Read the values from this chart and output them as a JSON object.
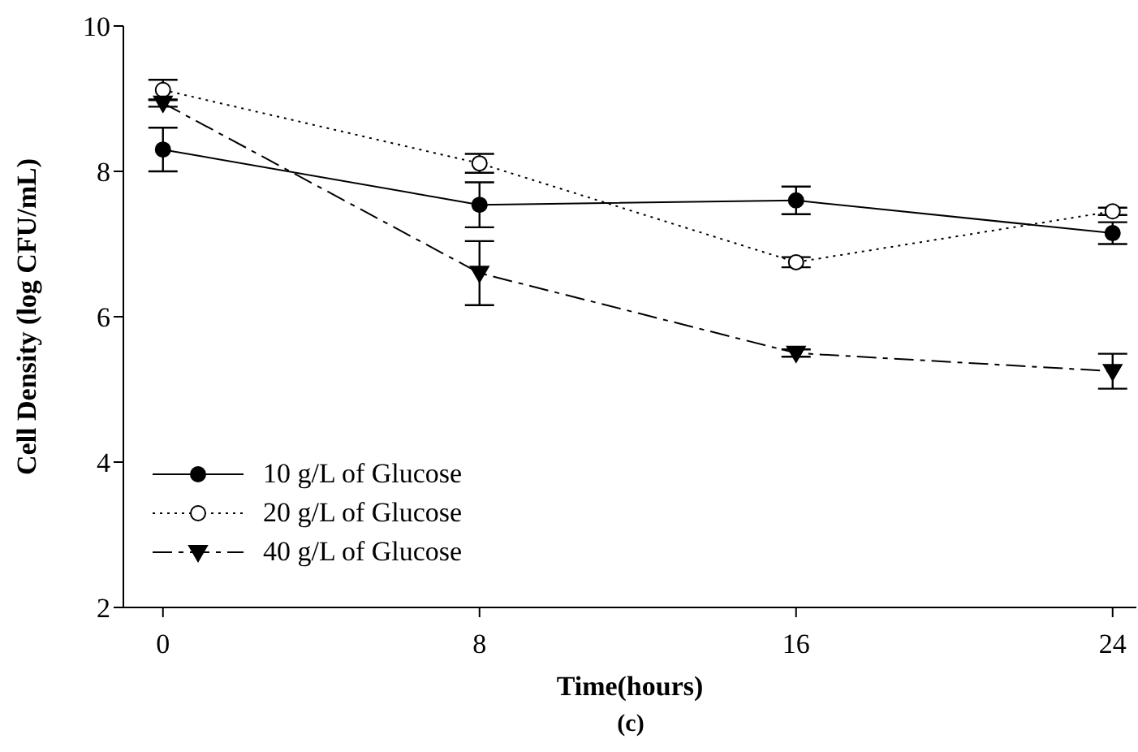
{
  "chart_data": {
    "type": "line",
    "xlabel": "Time(hours)",
    "ylabel": "Cell Density (log CFU/mL)",
    "annotations": [
      "(c)"
    ],
    "x": [
      0,
      8,
      16,
      24
    ],
    "xlim": [
      -1,
      24.6
    ],
    "xticks": [
      0,
      8,
      16,
      24
    ],
    "ylim": [
      2,
      10
    ],
    "yticks": [
      2,
      4,
      6,
      8,
      10
    ],
    "legend": "bottom left",
    "series": [
      {
        "name": "10 g/L of Glucose",
        "color": "#000000",
        "marker": "circle",
        "line_style": "solid",
        "values": [
          8.3,
          7.54,
          7.6,
          7.15
        ],
        "errors": [
          0.3,
          0.31,
          0.19,
          0.15
        ]
      },
      {
        "name": "20 g/L of Glucose",
        "color": "#000000",
        "marker": "circle",
        "line_style": "dotted",
        "values": [
          9.12,
          8.11,
          6.75,
          7.45
        ],
        "errors": [
          0.14,
          0.13,
          0.07,
          0.05
        ]
      },
      {
        "name": "40 g/L of Glucose",
        "color": "#000000",
        "marker": "triangle",
        "line_style": "dashed",
        "values": [
          8.94,
          6.6,
          5.5,
          5.25
        ],
        "errors": [
          0.05,
          0.44,
          0.05,
          0.24
        ]
      }
    ]
  }
}
